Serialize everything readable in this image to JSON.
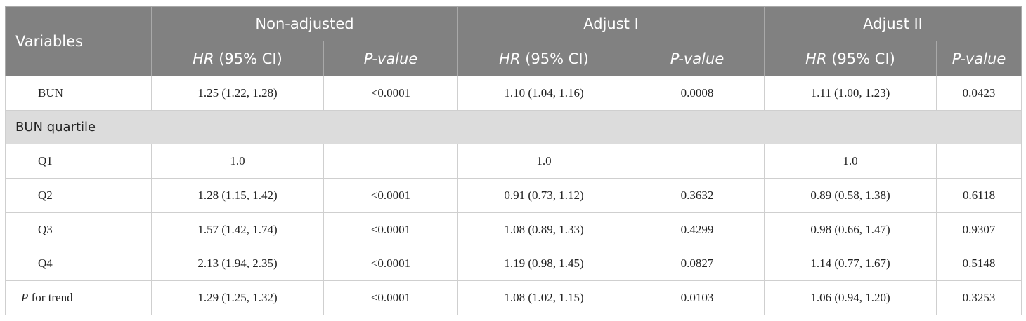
{
  "header": {
    "variables": "Variables",
    "groups": [
      "Non-adjusted",
      "Adjust I",
      "Adjust II"
    ],
    "hr_label_italic": "HR",
    "hr_label_rest": " (95% CI)",
    "p_label": "P-value"
  },
  "rows": {
    "bun": {
      "label": "BUN",
      "values": [
        "1.25 (1.22, 1.28)",
        "<0.0001",
        "1.10 (1.04, 1.16)",
        "0.0008",
        "1.11 (1.00, 1.23)",
        "0.0423"
      ]
    },
    "section": "BUN quartile",
    "q1": {
      "label": "Q1",
      "values": [
        "1.0",
        "",
        "1.0",
        "",
        "1.0",
        ""
      ]
    },
    "q2": {
      "label": "Q2",
      "values": [
        "1.28 (1.15, 1.42)",
        "<0.0001",
        "0.91 (0.73, 1.12)",
        "0.3632",
        "0.89 (0.58, 1.38)",
        "0.6118"
      ]
    },
    "q3": {
      "label": "Q3",
      "values": [
        "1.57 (1.42, 1.74)",
        "<0.0001",
        "1.08 (0.89, 1.33)",
        "0.4299",
        "0.98 (0.66, 1.47)",
        "0.9307"
      ]
    },
    "q4": {
      "label": "Q4",
      "values": [
        "2.13 (1.94, 2.35)",
        "<0.0001",
        "1.19 (0.98, 1.45)",
        "0.0827",
        "1.14 (0.77, 1.67)",
        "0.5148"
      ]
    },
    "trend": {
      "label_italic": "P",
      "label_rest": " for trend",
      "values": [
        "1.29 (1.25, 1.32)",
        "<0.0001",
        "1.08 (1.02, 1.15)",
        "0.0103",
        "1.06 (0.94, 1.20)",
        "0.3253"
      ]
    }
  }
}
